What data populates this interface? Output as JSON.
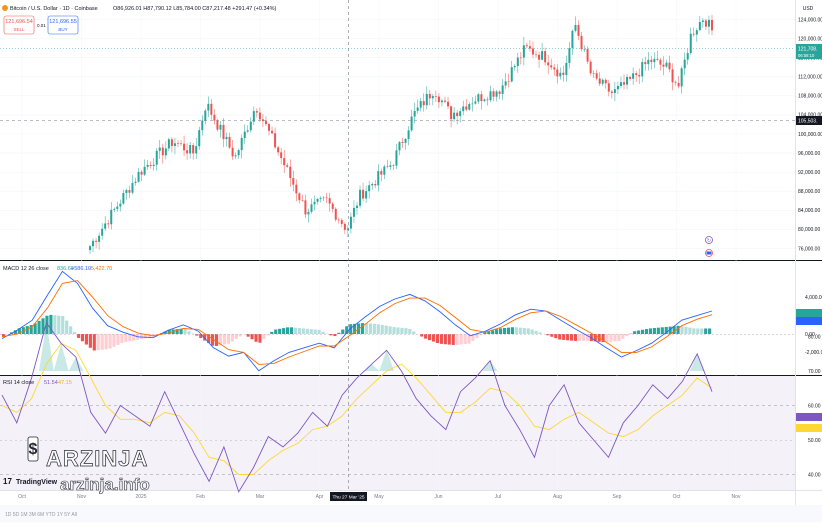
{
  "header": {
    "symbol": "Bitcoin / U.S. Dollar · 1D · Coinbase",
    "ohlc": "O86,926.01 H87,790.12 L85,784.00 C87,217.48 +291.47 (+0.34%)",
    "sell_price": "121,696.54",
    "sell_label": "SELL",
    "spread": "0.01",
    "buy_price": "121,696.55",
    "buy_label": "BUY"
  },
  "price_axis": {
    "currency": "USD",
    "ticks": [
      "124,000.00",
      "120,000.00",
      "116,000.00",
      "112,000.00",
      "108,000.00",
      "104,000.00",
      "100,000.00",
      "96,000.00",
      "92,000.00",
      "88,000.00",
      "84,000.00",
      "80,000.00",
      "76,000.00"
    ],
    "last_price_tag": "121,708.",
    "last_price_sub": "06:58:10",
    "crosshair_price_tag": "105,503."
  },
  "macd": {
    "label": "MACD 12 26 close",
    "v1": "836.60",
    "v2": "+586.10",
    "v3": "-5,422.70",
    "ticks": [
      "4,000.00",
      "2,000.00",
      "0.00",
      "-2,000.00"
    ]
  },
  "rsi": {
    "label": "RSI 14 close",
    "v1": "51.54",
    "v2": "47.15",
    "ticks": [
      "80.00",
      "70.00",
      "60.00",
      "50.00",
      "40.00",
      "30.00"
    ]
  },
  "time_axis": {
    "labels": [
      "Oct",
      "Nov",
      "2025",
      "Feb",
      "Mar",
      "Apr",
      "May",
      "Jun",
      "Jul",
      "Aug",
      "Sep",
      "Oct",
      "Nov"
    ],
    "crosshair_date": "Thu 27 Mar '25"
  },
  "branding": {
    "tv_logo": "TradingView",
    "arzinja": "ARZINJA",
    "arzinja_site": "arzinja.info"
  },
  "colors": {
    "up": "#26a69a",
    "down": "#ef5350",
    "macd_line": "#2962ff",
    "signal_line": "#ff6d00",
    "rsi_line": "#7e57c2",
    "rsi_ma": "#fdd835"
  },
  "chart_data": [
    {
      "type": "candlestick",
      "title": "Bitcoin / U.S. Dollar · 1D · Coinbase",
      "xlabel": "",
      "ylabel": "USD",
      "x": [
        "Oct",
        "Nov",
        "2025",
        "Feb",
        "Mar",
        "Apr",
        "May",
        "Jun",
        "Jul",
        "Aug",
        "Sep",
        "Oct"
      ],
      "ylim": [
        74000,
        126000
      ],
      "keypoints": [
        {
          "x": 0.0,
          "y": 76500
        },
        {
          "x": 0.12,
          "y": 92000
        },
        {
          "x": 0.2,
          "y": 98500
        },
        {
          "x": 0.25,
          "y": 96000
        },
        {
          "x": 0.28,
          "y": 106500
        },
        {
          "x": 0.35,
          "y": 95000
        },
        {
          "x": 0.4,
          "y": 106000
        },
        {
          "x": 0.45,
          "y": 97000
        },
        {
          "x": 0.52,
          "y": 84000
        },
        {
          "x": 0.57,
          "y": 86000
        },
        {
          "x": 0.62,
          "y": 80000
        },
        {
          "x": 0.65,
          "y": 87000
        },
        {
          "x": 0.73,
          "y": 94000
        },
        {
          "x": 0.78,
          "y": 104000
        },
        {
          "x": 0.83,
          "y": 109500
        },
        {
          "x": 0.87,
          "y": 104000
        },
        {
          "x": 0.92,
          "y": 107000
        },
        {
          "x": 0.99,
          "y": 109500
        },
        {
          "x": 1.05,
          "y": 118000
        },
        {
          "x": 1.1,
          "y": 116000
        },
        {
          "x": 1.14,
          "y": 112000
        },
        {
          "x": 1.17,
          "y": 123000
        },
        {
          "x": 1.21,
          "y": 112000
        },
        {
          "x": 1.26,
          "y": 108500
        },
        {
          "x": 1.3,
          "y": 111000
        },
        {
          "x": 1.35,
          "y": 115500
        },
        {
          "x": 1.39,
          "y": 114000
        },
        {
          "x": 1.42,
          "y": 110000
        },
        {
          "x": 1.45,
          "y": 121000
        },
        {
          "x": 1.48,
          "y": 124500
        },
        {
          "x": 1.5,
          "y": 121700
        }
      ]
    },
    {
      "type": "line",
      "title": "MACD 12 26 close",
      "ylim": [
        -5500,
        7000
      ],
      "series": [
        {
          "name": "MACD",
          "values": [
            -500,
            400,
            1500,
            4200,
            6800,
            5500,
            2800,
            900,
            200,
            -300,
            -400,
            400,
            1000,
            300,
            -1500,
            -2400,
            -2000,
            -4000,
            -2900,
            -2000,
            -1500,
            -1000,
            -1500,
            500,
            1800,
            3000,
            3800,
            4300,
            3600,
            2400,
            1000,
            -200,
            300,
            1100,
            2100,
            2700,
            2500,
            1500,
            500,
            -400,
            -1500,
            -2500,
            -1800,
            -1000,
            200,
            1500,
            2000,
            2500
          ]
        },
        {
          "name": "Signal",
          "values": [
            -300,
            0,
            800,
            2800,
            5500,
            5800,
            4000,
            2000,
            800,
            100,
            -200,
            100,
            600,
            500,
            -600,
            -1700,
            -2000,
            -3300,
            -3200,
            -2500,
            -1900,
            -1300,
            -1300,
            -200,
            1000,
            2300,
            3300,
            3900,
            3900,
            3100,
            1800,
            500,
            200,
            700,
            1600,
            2300,
            2500,
            1900,
            1000,
            100,
            -900,
            -2000,
            -2000,
            -1400,
            -300,
            900,
            1600,
            2100
          ]
        }
      ]
    },
    {
      "type": "line",
      "title": "RSI 14 close",
      "ylim": [
        28,
        85
      ],
      "series": [
        {
          "name": "RSI",
          "values": [
            63,
            55,
            68,
            84,
            78,
            74,
            58,
            52,
            60,
            57,
            54,
            64,
            55,
            46,
            38,
            48,
            35,
            42,
            51,
            48,
            52,
            58,
            54,
            63,
            68,
            72,
            76,
            70,
            62,
            57,
            53,
            64,
            68,
            73,
            60,
            53,
            45,
            60,
            66,
            55,
            50,
            45,
            55,
            60,
            66,
            62,
            67,
            75,
            64
          ]
        },
        {
          "name": "RSI MA",
          "values": [
            60,
            58,
            62,
            72,
            78,
            76,
            68,
            60,
            56,
            56,
            55,
            58,
            57,
            52,
            45,
            44,
            40,
            40,
            44,
            47,
            49,
            53,
            54,
            57,
            62,
            66,
            70,
            72,
            68,
            63,
            58,
            58,
            61,
            65,
            64,
            60,
            54,
            53,
            56,
            58,
            55,
            52,
            51,
            53,
            57,
            60,
            63,
            68,
            65
          ]
        }
      ]
    }
  ]
}
